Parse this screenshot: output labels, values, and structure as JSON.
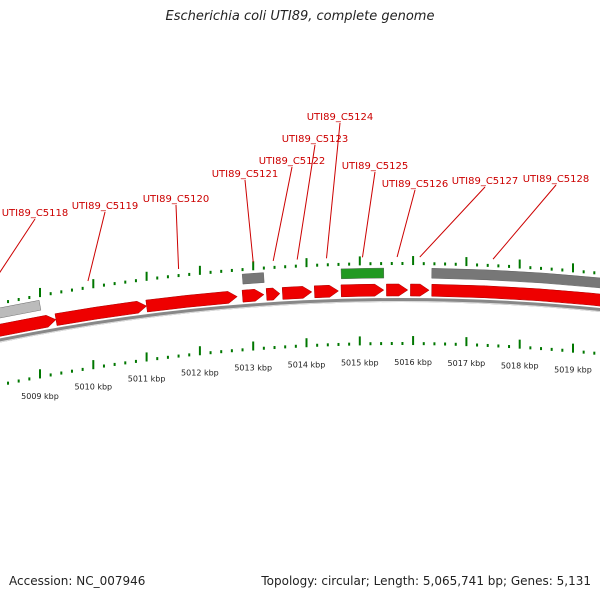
{
  "title": "Escherichia coli UTI89, complete genome",
  "footer": {
    "accession": "Accession: NC_007946",
    "topology": "Topology: circular; Length: 5,065,741 bp; Genes: 5,131"
  },
  "colors": {
    "gene_forward": "#ee0000",
    "gene_other": "#777777",
    "gene_light": "#bbbbbb",
    "gene_green": "#229922",
    "tick": "#007700",
    "label": "#cc0000",
    "backbone": "#888888"
  },
  "ruler": {
    "unit": "kbp",
    "ticks": [
      {
        "kbp": 5009,
        "label": "5009 kbp"
      },
      {
        "kbp": 5010,
        "label": "5010 kbp"
      },
      {
        "kbp": 5011,
        "label": "5011 kbp"
      },
      {
        "kbp": 5012,
        "label": "5012 kbp"
      },
      {
        "kbp": 5013,
        "label": "5013 kbp"
      },
      {
        "kbp": 5014,
        "label": "5014 kbp"
      },
      {
        "kbp": 5015,
        "label": "5015 kbp"
      },
      {
        "kbp": 5016,
        "label": "5016 kbp"
      },
      {
        "kbp": 5017,
        "label": "5017 kbp"
      },
      {
        "kbp": 5018,
        "label": "5018 kbp"
      },
      {
        "kbp": 5019,
        "label": "5019 kbp"
      }
    ]
  },
  "genes": [
    {
      "label": "UTI89_C5118",
      "start": 5007.3,
      "end": 5009.3,
      "strand": "+",
      "color": "red"
    },
    {
      "label": "UTI89_C5119",
      "start": 5009.3,
      "end": 5011.0,
      "strand": "+",
      "color": "red"
    },
    {
      "label": "UTI89_C5120",
      "start": 5011.0,
      "end": 5012.7,
      "strand": "+",
      "color": "red"
    },
    {
      "label": "UTI89_C5121",
      "start": 5012.8,
      "end": 5013.2,
      "strand": "+",
      "color": "red"
    },
    {
      "label": "UTI89_C5122",
      "start": 5013.25,
      "end": 5013.5,
      "strand": "+",
      "color": "red"
    },
    {
      "label": "UTI89_C5123",
      "start": 5013.55,
      "end": 5014.1,
      "strand": "+",
      "color": "red"
    },
    {
      "label": "UTI89_C5124",
      "start": 5014.15,
      "end": 5014.6,
      "strand": "+",
      "color": "red"
    },
    {
      "label": "UTI89_C5125",
      "start": 5014.65,
      "end": 5015.45,
      "strand": "+",
      "color": "red"
    },
    {
      "label": "UTI89_C5126",
      "start": 5015.5,
      "end": 5015.9,
      "strand": "+",
      "color": "red"
    },
    {
      "label": "UTI89_C5127",
      "start": 5015.95,
      "end": 5016.3,
      "strand": "+",
      "color": "red"
    },
    {
      "label": "UTI89_C5128",
      "start": 5016.35,
      "end": 5020.5,
      "strand": "+",
      "color": "red"
    }
  ],
  "other_features": [
    {
      "start": 5007.3,
      "end": 5009.0,
      "color": "light"
    },
    {
      "start": 5012.8,
      "end": 5013.2,
      "color": "gray"
    },
    {
      "start": 5014.65,
      "end": 5015.45,
      "color": "green"
    },
    {
      "start": 5016.35,
      "end": 5020.5,
      "color": "gray"
    }
  ]
}
